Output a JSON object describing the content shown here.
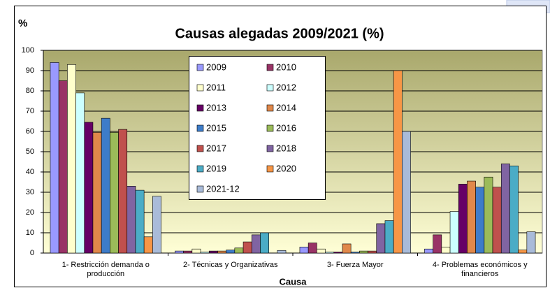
{
  "chart_data": {
    "type": "bar",
    "title": "Causas alegadas 2009/2021 (%)",
    "y_label": "%",
    "x_label": "Causa",
    "categories": [
      "1- Restricción demanda o producción",
      "2- Técnicas y Organizativas",
      "3- Fuerza Mayor",
      "4- Problemas económicos y financieros"
    ],
    "series": [
      {
        "name": "2009",
        "color": "#9999ff",
        "values": [
          94,
          1,
          3,
          2
        ]
      },
      {
        "name": "2010",
        "color": "#993366",
        "values": [
          85,
          1,
          5,
          9
        ]
      },
      {
        "name": "2011",
        "color": "#ffffcc",
        "values": [
          93,
          2,
          2,
          3
        ]
      },
      {
        "name": "2012",
        "color": "#ccffff",
        "values": [
          79,
          0.5,
          0.5,
          20.5
        ]
      },
      {
        "name": "2013",
        "color": "#660066",
        "values": [
          64.5,
          1,
          0.5,
          34
        ]
      },
      {
        "name": "2014",
        "color": "#e0884a",
        "values": [
          59.5,
          1,
          4.5,
          35.5
        ]
      },
      {
        "name": "2015",
        "color": "#3d7cc9",
        "values": [
          66.5,
          1.5,
          0.5,
          32.5
        ]
      },
      {
        "name": "2016",
        "color": "#9bbb59",
        "values": [
          59.5,
          2.5,
          1,
          37.5
        ]
      },
      {
        "name": "2017",
        "color": "#c0504d",
        "values": [
          61,
          5.5,
          1,
          32.5
        ]
      },
      {
        "name": "2018",
        "color": "#8064a2",
        "values": [
          33,
          9,
          14.5,
          44
        ]
      },
      {
        "name": "2019",
        "color": "#4bacc6",
        "values": [
          31,
          10,
          16,
          43
        ]
      },
      {
        "name": "2020",
        "color": "#f79646",
        "values": [
          8,
          0,
          90,
          1.5
        ]
      },
      {
        "name": "2021-12",
        "color": "#a9bbd9",
        "values": [
          28,
          1.3,
          60,
          10.5
        ]
      }
    ],
    "ylim": [
      0,
      100
    ],
    "yticks": [
      0,
      10,
      20,
      30,
      40,
      50,
      60,
      70,
      80,
      90,
      100
    ],
    "grid": true,
    "legend": "top"
  }
}
